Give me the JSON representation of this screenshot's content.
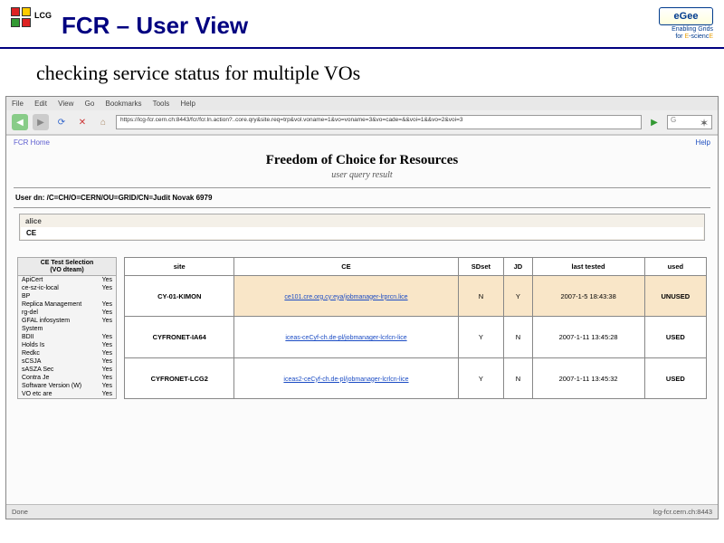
{
  "header": {
    "lcg_label": "LCG",
    "title": "FCR – User View",
    "egee_label": "eGee",
    "egee_tagline1": "Enabling Grids",
    "egee_tagline2": "for E-sciencE"
  },
  "subheading": "checking service status for multiple VOs",
  "browser": {
    "menu": [
      "File",
      "Edit",
      "View",
      "Go",
      "Bookmarks",
      "Tools",
      "Help"
    ],
    "address": "https://lcg-fcr.cern.ch:8443/fcr/fcr.ln.action?..core.qry&site.req=trp&vol.voname=1&vo=voname=3&vo=cade=&&voi=1&&vo=2&voi=3",
    "search_placeholder": "G",
    "status_left": "Done",
    "status_right": "lcg-fcr.cern.ch:8443"
  },
  "page": {
    "topleft": "FCR Home",
    "topright": "Help",
    "title": "Freedom of Choice for Resources",
    "subtitle": "user query result",
    "user_dn": "User dn: /C=CH/O=CERN/OU=GRID/CN=Judit Novak 6979",
    "vo_header": "alice",
    "vo_item": "CE",
    "panel_title_l1": "CE Test Selection",
    "panel_title_l2": "(VO dteam)",
    "panel_rows": [
      {
        "name": "ApiCert",
        "val": "Yes"
      },
      {
        "name": "ce-sz-ic-local",
        "val": "Yes"
      },
      {
        "name": "BP",
        "val": ""
      },
      {
        "name": "Replica Management",
        "val": "Yes"
      },
      {
        "name": "rg-del",
        "val": "Yes"
      },
      {
        "name": "GFAL infosystem",
        "val": "Yes"
      },
      {
        "name": "System",
        "val": ""
      },
      {
        "name": "BDII",
        "val": "Yes"
      },
      {
        "name": "Holds Is",
        "val": "Yes"
      },
      {
        "name": "Redkc",
        "val": "Yes"
      },
      {
        "name": "sCSJA",
        "val": "Yes"
      },
      {
        "name": "sASZA Sec",
        "val": "Yes"
      },
      {
        "name": "Contra Je",
        "val": "Yes"
      },
      {
        "name": "Software Version (W)",
        "val": "Yes"
      },
      {
        "name": "VO etc are",
        "val": "Yes"
      }
    ],
    "table": {
      "headers": [
        "site",
        "CE",
        "SDset",
        "JD",
        "last tested",
        "used"
      ],
      "rows": [
        {
          "site": "CY-01-KIMON",
          "ce": "ce101.cre.org.cy:eya/jobmanager-lrprcn.lice",
          "sd": "N",
          "jd": "Y",
          "last": "2007-1-5 18:43:38",
          "used": "UNUSED",
          "cls": "row-unused"
        },
        {
          "site": "CYFRONET-IA64",
          "ce": "iceas-ceCyf-ch.de-pl/jobmanager-lcrlcn-lice",
          "sd": "Y",
          "jd": "N",
          "last": "2007-1-11 13:45:28",
          "used": "USED",
          "cls": "row-used"
        },
        {
          "site": "CYFRONET-LCG2",
          "ce": "iceas2-ceCyf-ch.de-pl/jobmanager-lcrlcn-lice",
          "sd": "Y",
          "jd": "N",
          "last": "2007-1-11 13:45:32",
          "used": "USED",
          "cls": "row-used"
        }
      ]
    }
  }
}
